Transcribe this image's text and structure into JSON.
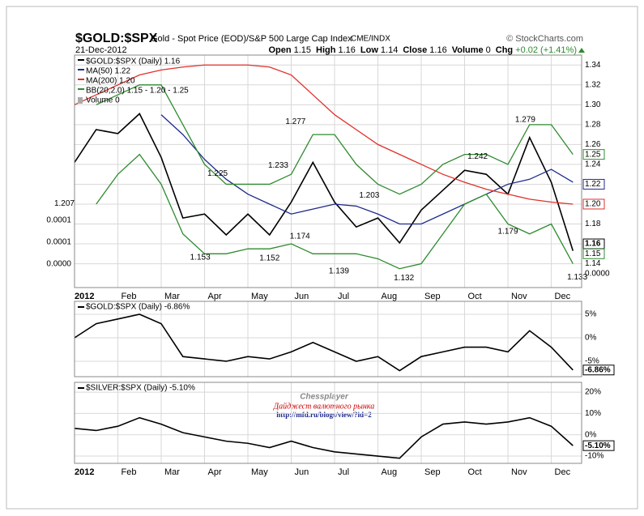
{
  "header": {
    "symbol": "$GOLD:$SPX",
    "description": "Gold - Spot Price (EOD)/S&P 500 Large Cap Index",
    "exchange": "CME/INDX",
    "source": "© StockCharts.com",
    "date": "21-Dec-2012",
    "quote": [
      {
        "label": "Open",
        "value": 1.15
      },
      {
        "label": "High",
        "value": 1.16
      },
      {
        "label": "Low",
        "value": 1.14
      },
      {
        "label": "Close",
        "value": 1.16
      },
      {
        "label": "Volume",
        "value": 0
      },
      {
        "label": "Chg",
        "value": "+0.02 (+1.41%)"
      }
    ]
  },
  "watermark": {
    "author": "Chessplayer",
    "subtitle": "Дайджест валютного рынка",
    "url": "http://mfd.ru/blogs/view/?id=2"
  },
  "chart_data": [
    {
      "type": "line",
      "xlim": [
        0,
        11.7
      ],
      "xticks": [
        {
          "value": 0,
          "label": "2012"
        },
        {
          "value": 1,
          "label": "Feb"
        },
        {
          "value": 2,
          "label": "Mar"
        },
        {
          "value": 3,
          "label": "Apr"
        },
        {
          "value": 4,
          "label": "May"
        },
        {
          "value": 5,
          "label": "Jun"
        },
        {
          "value": 6,
          "label": "Jul"
        },
        {
          "value": 7,
          "label": "Aug"
        },
        {
          "value": 8,
          "label": "Sep"
        },
        {
          "value": 9,
          "label": "Oct"
        },
        {
          "value": 10,
          "label": "Nov"
        },
        {
          "value": 11,
          "label": "Dec"
        }
      ],
      "x": [
        0,
        0.5,
        1,
        1.5,
        2,
        2.5,
        3,
        3.5,
        4,
        4.5,
        5,
        5.5,
        6,
        6.5,
        7,
        7.5,
        8,
        8.5,
        9,
        9.5,
        10,
        10.5,
        11,
        11.5
      ],
      "ylim": [
        1.116,
        1.35
      ],
      "yticks": [
        {
          "value": 1.14,
          "label": "1.14"
        },
        {
          "value": 1.16,
          "label": "1.16"
        },
        {
          "value": 1.18,
          "label": "1.18"
        },
        {
          "value": 1.2,
          "label": "1.20"
        },
        {
          "value": 1.22,
          "label": "1.22"
        },
        {
          "value": 1.24,
          "label": "1.24"
        },
        {
          "value": 1.26,
          "label": "1.26"
        },
        {
          "value": 1.28,
          "label": "1.28"
        },
        {
          "value": 1.3,
          "label": "1.30"
        },
        {
          "value": 1.32,
          "label": "1.32"
        },
        {
          "value": 1.34,
          "label": "1.34"
        }
      ],
      "grid": true,
      "series": [
        {
          "name": "$GOLD:$SPX (Daily) 1.16",
          "color": "#000000",
          "values": [
            1.242,
            1.275,
            1.271,
            1.291,
            1.247,
            1.186,
            1.19,
            1.169,
            1.19,
            1.169,
            1.202,
            1.242,
            1.202,
            1.177,
            1.186,
            1.161,
            1.194,
            1.214,
            1.234,
            1.23,
            1.21,
            1.267,
            1.222,
            1.153
          ]
        },
        {
          "name": "MA(50) 1.22",
          "color": "#1f2a8c",
          "values": [
            null,
            null,
            null,
            null,
            1.29,
            1.27,
            1.245,
            1.225,
            1.21,
            1.2,
            1.19,
            1.195,
            1.2,
            1.198,
            1.19,
            1.18,
            1.18,
            1.19,
            1.2,
            1.21,
            1.22,
            1.225,
            1.235,
            1.222
          ]
        },
        {
          "name": "MA(200) 1.20",
          "color": "#e0302a",
          "values": [
            1.3,
            1.31,
            1.32,
            1.33,
            1.335,
            1.338,
            1.34,
            1.34,
            1.34,
            1.338,
            1.33,
            1.31,
            1.29,
            1.275,
            1.26,
            1.25,
            1.24,
            1.23,
            1.222,
            1.215,
            1.21,
            1.205,
            1.202,
            1.2
          ]
        },
        {
          "name": "BB(20,2.0) 1.15 - 1.20 - 1.25",
          "color": "#2e8b2e",
          "values": [
            null,
            1.3,
            1.31,
            1.32,
            1.32,
            1.28,
            1.24,
            1.22,
            1.22,
            1.22,
            1.23,
            1.27,
            1.27,
            1.24,
            1.22,
            1.21,
            1.22,
            1.24,
            1.25,
            1.25,
            1.24,
            1.28,
            1.28,
            1.25
          ],
          "lower": [
            null,
            1.2,
            1.23,
            1.25,
            1.22,
            1.17,
            1.15,
            1.15,
            1.155,
            1.155,
            1.16,
            1.15,
            1.15,
            1.15,
            1.145,
            1.135,
            1.14,
            1.17,
            1.2,
            1.21,
            1.18,
            1.17,
            1.18,
            1.14
          ]
        }
      ],
      "annotations": [
        {
          "x": 0,
          "value": 1.207
        },
        {
          "x": 3.3,
          "value": 1.225
        },
        {
          "x": 2.9,
          "value": 1.153
        },
        {
          "x": 4.7,
          "value": 1.233
        },
        {
          "x": 5.1,
          "value": 1.277
        },
        {
          "x": 4.5,
          "value": 1.152
        },
        {
          "x": 5.2,
          "value": 1.174
        },
        {
          "x": 6.1,
          "value": 1.139
        },
        {
          "x": 6.8,
          "value": 1.203
        },
        {
          "x": 7.6,
          "value": 1.132
        },
        {
          "x": 9.3,
          "value": 1.242
        },
        {
          "x": 10.0,
          "value": 1.179
        },
        {
          "x": 10.4,
          "value": 1.279
        },
        {
          "x": 11.6,
          "value": 1.133
        }
      ],
      "end_labels": [
        {
          "value": 1.25,
          "label": "1.25",
          "color": "#2e8b2e"
        },
        {
          "value": 1.22,
          "label": "1.22",
          "color": "#1f2a8c"
        },
        {
          "value": 1.2,
          "label": "1.20",
          "color": "#e0302a"
        },
        {
          "value": 1.16,
          "label": "1.16",
          "color": "#000000"
        },
        {
          "value": 1.15,
          "label": "1.15",
          "color": "#2e8b2e"
        }
      ],
      "volume": {
        "name": "Volume 0",
        "ylim": [
          -5.37e-05,
          0.000478
        ],
        "yticks": [
          {
            "value": 0.0001,
            "label": "0.0001"
          },
          {
            "value": 5e-05,
            "label": "0.0001"
          },
          {
            "value": 0,
            "label": "0.0000"
          }
        ],
        "end_label": {
          "value": 0,
          "label": "0.0000"
        }
      }
    },
    {
      "type": "line",
      "title": "$GOLD:$SPX (Daily) -6.86%",
      "xlim": [
        0,
        11.7
      ],
      "x": [
        0,
        0.5,
        1,
        1.5,
        2,
        2.5,
        3,
        3.5,
        4,
        4.5,
        5,
        5.5,
        6,
        6.5,
        7,
        7.5,
        8,
        8.5,
        9,
        9.5,
        10,
        10.5,
        11,
        11.5
      ],
      "ylim": [
        -8.28,
        7.76
      ],
      "yticks": [
        {
          "value": 5,
          "label": "5%"
        },
        {
          "value": 0,
          "label": "0%"
        },
        {
          "value": -5,
          "label": "-5%"
        }
      ],
      "series": [
        {
          "name": "$GOLD:$SPX",
          "color": "#000000",
          "values": [
            0,
            3,
            4,
            5,
            3,
            -4,
            -4.5,
            -5,
            -4,
            -4.5,
            -3,
            -1,
            -3,
            -5,
            -4,
            -7,
            -4,
            -3,
            -2,
            -2,
            -3,
            1.5,
            -2,
            -6.86
          ]
        }
      ],
      "end_label": {
        "value": -6.86,
        "label": "-6.86%"
      }
    },
    {
      "type": "line",
      "title": "$SILVER:$SPX (Daily) -5.10%",
      "xlim": [
        0,
        11.7
      ],
      "xticks": [
        {
          "value": 0,
          "label": "2012"
        },
        {
          "value": 1,
          "label": "Feb"
        },
        {
          "value": 2,
          "label": "Mar"
        },
        {
          "value": 3,
          "label": "Apr"
        },
        {
          "value": 4,
          "label": "May"
        },
        {
          "value": 5,
          "label": "Jun"
        },
        {
          "value": 6,
          "label": "Jul"
        },
        {
          "value": 7,
          "label": "Aug"
        },
        {
          "value": 8,
          "label": "Sep"
        },
        {
          "value": 9,
          "label": "Oct"
        },
        {
          "value": 10,
          "label": "Nov"
        },
        {
          "value": 11,
          "label": "Dec"
        }
      ],
      "x": [
        0,
        0.5,
        1,
        1.5,
        2,
        2.5,
        3,
        3.5,
        4,
        4.5,
        5,
        5.5,
        6,
        6.5,
        7,
        7.5,
        8,
        8.5,
        9,
        9.5,
        10,
        10.5,
        11,
        11.5
      ],
      "ylim": [
        -13.4,
        24.6
      ],
      "yticks": [
        {
          "value": 20,
          "label": "20%"
        },
        {
          "value": 10,
          "label": "10%"
        },
        {
          "value": 0,
          "label": "0%"
        },
        {
          "value": -10,
          "label": "-10%"
        }
      ],
      "series": [
        {
          "name": "$SILVER:$SPX",
          "color": "#000000",
          "values": [
            3,
            2,
            4,
            8,
            5,
            1,
            -1,
            -3,
            -4,
            -6,
            -3,
            -6,
            -8,
            -9,
            -10,
            -11,
            -1,
            5,
            6,
            5,
            6,
            8,
            4,
            -5.1
          ]
        }
      ],
      "end_label": {
        "value": -5.1,
        "label": "-5.10%"
      }
    }
  ]
}
